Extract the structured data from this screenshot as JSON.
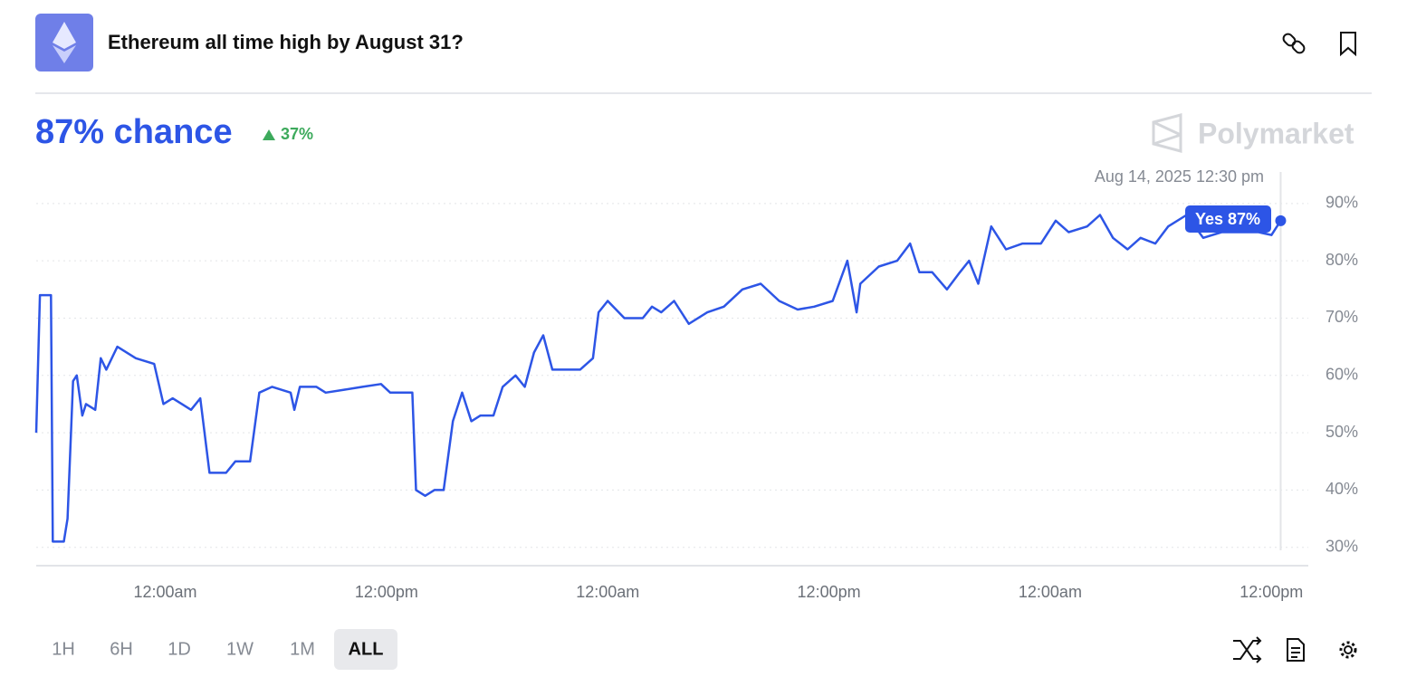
{
  "header": {
    "title": "Ethereum all time high by August 31?",
    "headline": "87% chance",
    "change": "37%",
    "brand": "Polymarket"
  },
  "ranges": [
    "1H",
    "6H",
    "1D",
    "1W",
    "1M",
    "ALL"
  ],
  "selected_range": "ALL",
  "chart_data": {
    "type": "line",
    "xlim": [
      -7,
      62
    ],
    "ylim": [
      26.8,
      95.5
    ],
    "xticks": [
      {
        "value": 0,
        "label": "12:00am"
      },
      {
        "value": 12,
        "label": "12:00pm"
      },
      {
        "value": 24,
        "label": "12:00am"
      },
      {
        "value": 36,
        "label": "12:00pm"
      },
      {
        "value": 48,
        "label": "12:00am"
      },
      {
        "value": 60,
        "label": "12:00pm"
      }
    ],
    "yticks": [
      {
        "value": 30,
        "label": "30%"
      },
      {
        "value": 40,
        "label": "40%"
      },
      {
        "value": 50,
        "label": "50%"
      },
      {
        "value": 60,
        "label": "60%"
      },
      {
        "value": 70,
        "label": "70%"
      },
      {
        "value": 80,
        "label": "80%"
      },
      {
        "value": 90,
        "label": "90%"
      }
    ],
    "grid": true,
    "series": [
      {
        "name": "Yes",
        "color": "#2d55e6",
        "x": [
          -7.0,
          -6.8,
          -6.2,
          -6.1,
          -5.9,
          -5.5,
          -5.3,
          -5.0,
          -4.8,
          -4.5,
          -4.3,
          -3.8,
          -3.5,
          -3.2,
          -2.6,
          -1.6,
          -0.6,
          -0.1,
          0.4,
          0.9,
          1.4,
          1.9,
          2.4,
          3.3,
          3.8,
          4.6,
          5.1,
          5.8,
          6.8,
          7.0,
          7.3,
          8.2,
          8.7,
          9.7,
          10.7,
          11.7,
          12.2,
          13.4,
          13.6,
          14.1,
          14.6,
          15.1,
          15.6,
          16.1,
          16.6,
          17.1,
          17.8,
          18.3,
          19.0,
          19.5,
          20.0,
          20.5,
          21.0,
          21.7,
          22.5,
          23.2,
          23.5,
          24.0,
          24.9,
          25.9,
          26.4,
          26.9,
          27.6,
          28.4,
          29.4,
          30.3,
          31.3,
          32.3,
          33.3,
          34.3,
          35.2,
          36.2,
          37.0,
          37.5,
          37.7,
          38.7,
          39.7,
          40.4,
          40.9,
          41.6,
          42.4,
          43.1,
          43.6,
          44.1,
          44.8,
          45.6,
          46.5,
          47.5,
          48.3,
          49.0,
          50.0,
          50.7,
          51.4,
          52.2,
          52.9,
          53.7,
          54.4,
          55.4,
          56.3,
          57.3,
          58.3,
          59.3,
          60.0,
          60.5
        ],
        "values": [
          50,
          74,
          74,
          31,
          31,
          31,
          35,
          59,
          60,
          53,
          55,
          54,
          63,
          61,
          65,
          63,
          62,
          55,
          56,
          55,
          54,
          56,
          43,
          43,
          45,
          45,
          57,
          58,
          57,
          54,
          58,
          58,
          57,
          57.5,
          58,
          58.5,
          57,
          57,
          40,
          39,
          40,
          40,
          52,
          57,
          52,
          53,
          53,
          58,
          60,
          58,
          64,
          67,
          61,
          61,
          61,
          63,
          71,
          73,
          70,
          70,
          72,
          71,
          73,
          69,
          71,
          72,
          75,
          76,
          73,
          71.5,
          72,
          73,
          80,
          71,
          76,
          79,
          80,
          83,
          78,
          78,
          75,
          78,
          80,
          76,
          86,
          82,
          83,
          83,
          87,
          85,
          86,
          88,
          84,
          82,
          84,
          83,
          86,
          88,
          84,
          85,
          85,
          85,
          84.5,
          87
        ]
      }
    ],
    "hover": {
      "time": "Aug 14, 2025 12:30 pm",
      "x": 60.5,
      "value": 87,
      "label": "Yes 87%"
    }
  }
}
